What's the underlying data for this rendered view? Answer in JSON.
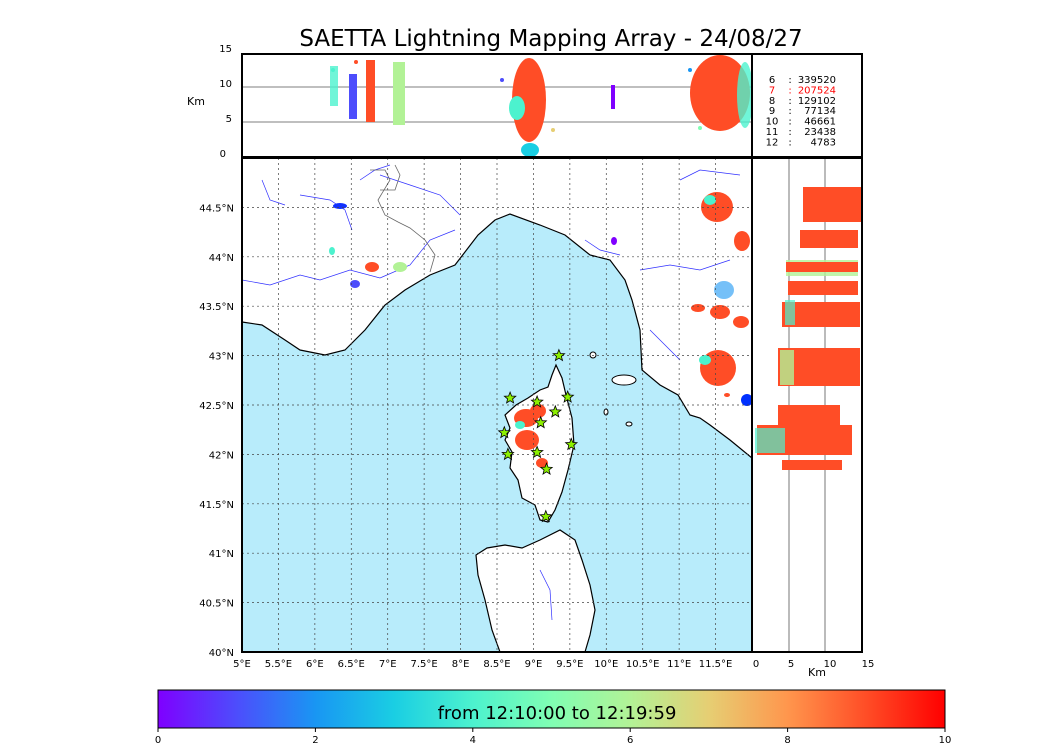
{
  "title": "SAETTA Lightning Mapping Array - 24/08/27",
  "top_panel": {
    "ylabel": "Km",
    "yticks": [
      "15",
      "10",
      "5",
      "0"
    ],
    "altitude_lines_km": [
      5,
      10
    ],
    "counts": [
      {
        "level": "6",
        "count": "339520",
        "color": "#000000"
      },
      {
        "level": "7",
        "count": "207524",
        "color": "#ff0000"
      },
      {
        "level": "8",
        "count": "129102",
        "color": "#000000"
      },
      {
        "level": "9",
        "count": "77134",
        "color": "#000000"
      },
      {
        "level": "10",
        "count": "46661",
        "color": "#000000"
      },
      {
        "level": "11",
        "count": "23438",
        "color": "#000000"
      },
      {
        "level": "12",
        "count": "4783",
        "color": "#000000"
      }
    ]
  },
  "map": {
    "lat_ticks": [
      "44.5°N",
      "44°N",
      "43.5°N",
      "43°N",
      "42.5°N",
      "42°N",
      "41.5°N",
      "41°N",
      "40.5°N",
      "40°N"
    ],
    "lon_ticks": [
      "5°E",
      "5.5°E",
      "6°E",
      "6.5°E",
      "7°E",
      "7.5°E",
      "8°E",
      "8.5°E",
      "9°E",
      "9.5°E",
      "10°E",
      "10.5°E",
      "11°E",
      "11.5°E"
    ],
    "lon_range": [
      5,
      12
    ],
    "lat_range": [
      40,
      45
    ],
    "sea_color": "#b8ecfb",
    "stations": [
      {
        "lon": 9.35,
        "lat": 43.0
      },
      {
        "lon": 8.68,
        "lat": 42.57
      },
      {
        "lon": 9.05,
        "lat": 42.53
      },
      {
        "lon": 9.47,
        "lat": 42.58
      },
      {
        "lon": 9.3,
        "lat": 42.43
      },
      {
        "lon": 9.1,
        "lat": 42.32
      },
      {
        "lon": 8.6,
        "lat": 42.22
      },
      {
        "lon": 9.52,
        "lat": 42.1
      },
      {
        "lon": 8.65,
        "lat": 42.0
      },
      {
        "lon": 9.05,
        "lat": 42.02
      },
      {
        "lon": 9.18,
        "lat": 41.85
      },
      {
        "lon": 9.17,
        "lat": 41.37
      }
    ]
  },
  "right_panel": {
    "xticks": [
      "0",
      "5",
      "10",
      "15"
    ],
    "xlabel": "Km",
    "altitude_lines_km": [
      5,
      10
    ]
  },
  "colorbar": {
    "label": "from 12:10:00 to 12:19:59",
    "ticks": [
      "0",
      "2",
      "4",
      "6",
      "8",
      "10"
    ],
    "colormap": "rainbow",
    "stops": [
      "#7f00ff",
      "#4d4dfc",
      "#1996f3",
      "#1acee3",
      "#4cf2ce",
      "#80feb3",
      "#b2f296",
      "#e6ce73",
      "#ff964d",
      "#ff4d26",
      "#ff0000"
    ]
  }
}
